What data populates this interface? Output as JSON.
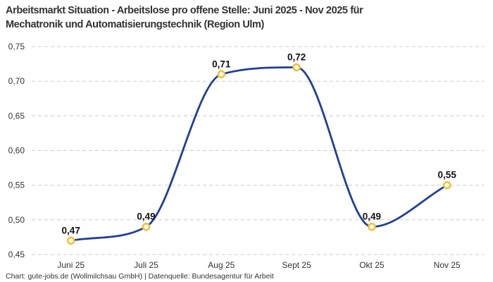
{
  "title": {
    "text": "Arbeitsmarkt Situation - Arbeitslose pro offene Stelle: Juni 2025 - Nov 2025 für Mechatronik und Automatisierungstechnik (Region Ulm)",
    "lines": [
      "Arbeitsmarkt Situation - Arbeitslose pro offene Stelle: Juni 2025 - Nov 2025 für",
      "Mechatronik und Automatisierungstechnik (Region Ulm)"
    ]
  },
  "footer": {
    "text": "Chart: gute-jobs.de (Wollmilchsau GmbH) | Datenquelle: Bundesagentur für Arbeit"
  },
  "chart_data": {
    "type": "line",
    "title": "Arbeitsmarkt Situation - Arbeitslose pro offene Stelle: Juni 2025 - Nov 2025 für Mechatronik und Automatisierungstechnik (Region Ulm)",
    "categories": [
      "Juni 25",
      "Juli 25",
      "Aug 25",
      "Sept 25",
      "Okt 25",
      "Nov 25"
    ],
    "values": [
      0.47,
      0.49,
      0.71,
      0.72,
      0.49,
      0.55
    ],
    "value_labels": [
      "0,47",
      "0,49",
      "0,71",
      "0,72",
      "0,49",
      "0,55"
    ],
    "yticks": [
      0.45,
      0.5,
      0.55,
      0.6,
      0.65,
      0.7,
      0.75
    ],
    "ytick_labels": [
      "0,45",
      "0,50",
      "0,55",
      "0,60",
      "0,65",
      "0,70",
      "0,75"
    ],
    "ylim": [
      0.45,
      0.75
    ],
    "xlabel": "",
    "ylabel": "",
    "grid": "horizontal-dashed",
    "legend": "none",
    "curve": "monotone",
    "colors": {
      "line": "#1f3d9c",
      "marker_ring": "#f1c232",
      "marker_fill": "#ffffff",
      "grid": "#cbcbcb",
      "text": "#333333",
      "value_label": "#111111"
    }
  }
}
